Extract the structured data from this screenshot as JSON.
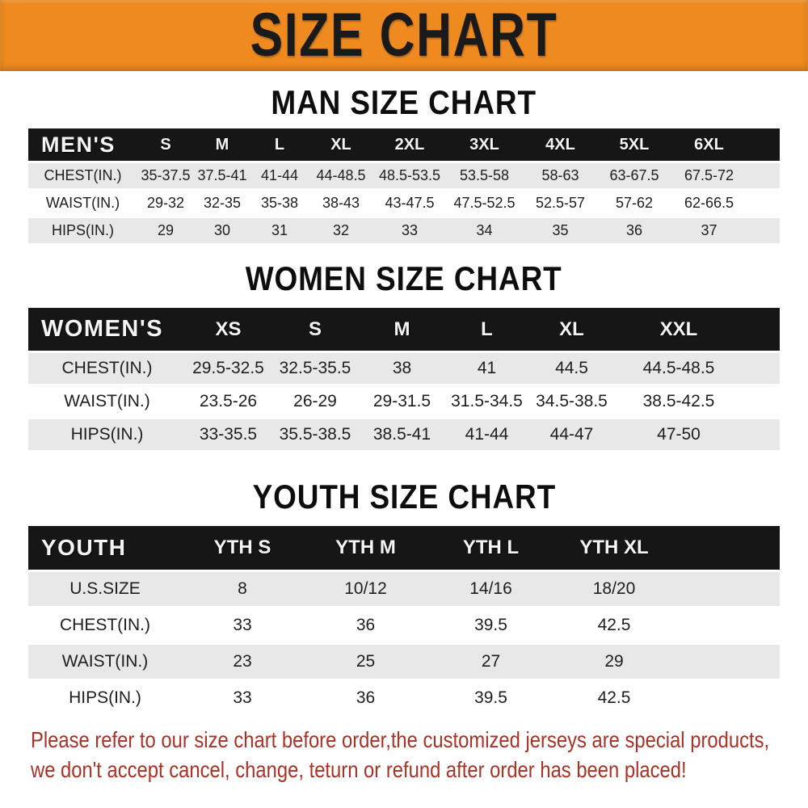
{
  "banner": {
    "title": "SIZE CHART"
  },
  "sections": [
    {
      "title": "MAN SIZE CHART",
      "table": {
        "label": "MEN'S",
        "columns": [
          "S",
          "M",
          "L",
          "XL",
          "2XL",
          "3XL",
          "4XL",
          "5XL",
          "6XL"
        ],
        "rows": [
          {
            "label": "CHEST(IN.)",
            "values": [
              "35-37.5",
              "37.5-41",
              "41-44",
              "44-48.5",
              "48.5-53.5",
              "53.5-58",
              "58-63",
              "63-67.5",
              "67.5-72"
            ]
          },
          {
            "label": "WAIST(IN.)",
            "values": [
              "29-32",
              "32-35",
              "35-38",
              "38-43",
              "43-47.5",
              "47.5-52.5",
              "52.5-57",
              "57-62",
              "62-66.5"
            ]
          },
          {
            "label": "HIPS(IN.)",
            "values": [
              "29",
              "30",
              "31",
              "32",
              "33",
              "34",
              "35",
              "36",
              "37"
            ]
          }
        ]
      }
    },
    {
      "title": "WOMEN SIZE CHART",
      "table": {
        "label": "WOMEN'S",
        "columns": [
          "XS",
          "S",
          "M",
          "L",
          "XL",
          "XXL"
        ],
        "rows": [
          {
            "label": "CHEST(IN.)",
            "values": [
              "29.5-32.5",
              "32.5-35.5",
              "38",
              "41",
              "44.5",
              "44.5-48.5"
            ]
          },
          {
            "label": "WAIST(IN.)",
            "values": [
              "23.5-26",
              "26-29",
              "29-31.5",
              "31.5-34.5",
              "34.5-38.5",
              "38.5-42.5"
            ]
          },
          {
            "label": "HIPS(IN.)",
            "values": [
              "33-35.5",
              "35.5-38.5",
              "38.5-41",
              "41-44",
              "44-47",
              "47-50"
            ]
          }
        ]
      }
    },
    {
      "title": "YOUTH SIZE CHART",
      "table": {
        "label": "YOUTH",
        "columns": [
          "YTH S",
          "YTH M",
          "YTH L",
          "YTH XL"
        ],
        "rows": [
          {
            "label": "U.S.SIZE",
            "values": [
              "8",
              "10/12",
              "14/16",
              "18/20"
            ]
          },
          {
            "label": "CHEST(IN.)",
            "values": [
              "33",
              "36",
              "39.5",
              "42.5"
            ]
          },
          {
            "label": "WAIST(IN.)",
            "values": [
              "23",
              "25",
              "27",
              "29"
            ]
          },
          {
            "label": "HIPS(IN.)",
            "values": [
              "33",
              "36",
              "39.5",
              "42.5"
            ]
          }
        ]
      }
    }
  ],
  "footer": {
    "line1": "Please refer to our size chart before order,the customized jerseys are special products,",
    "line2": "we don't accept cancel, change, teturn or refund after order has been placed!"
  },
  "colors": {
    "banner_bg": "#EE8A1F",
    "header_bar": "#161616",
    "row_stripe": "#E8E8E8",
    "notice_red": "#A93227"
  }
}
